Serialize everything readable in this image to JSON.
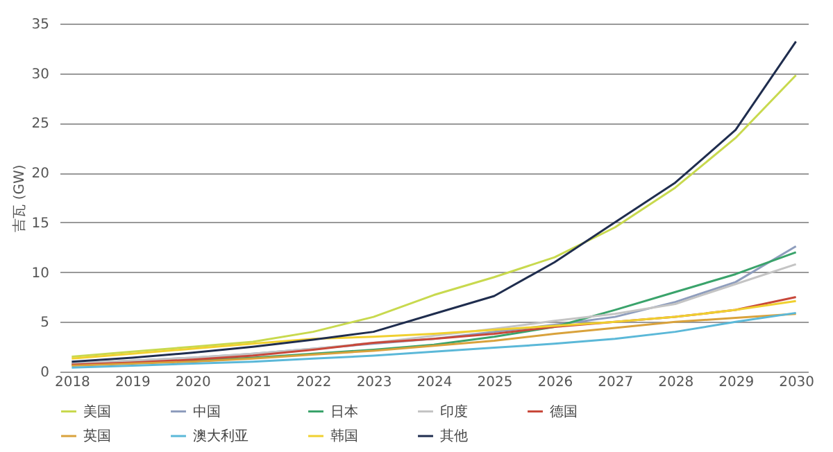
{
  "chart_data": {
    "type": "line",
    "ylabel": "吉瓦 (GW)",
    "categories": [
      "2018",
      "2019",
      "2020",
      "2021",
      "2022",
      "2023",
      "2024",
      "2025",
      "2026",
      "2027",
      "2028",
      "2029",
      "2030"
    ],
    "series": [
      {
        "name": "美国",
        "color": "#c8d94e",
        "values": [
          1.5,
          2.0,
          2.5,
          3.0,
          4.0,
          5.5,
          7.7,
          9.5,
          11.5,
          14.5,
          18.5,
          23.5,
          29.8
        ]
      },
      {
        "name": "中国",
        "color": "#8e9dbd",
        "values": [
          0.8,
          1.1,
          1.4,
          1.8,
          2.3,
          2.8,
          3.3,
          4.0,
          4.7,
          5.5,
          7.0,
          9.0,
          12.6
        ]
      },
      {
        "name": "日本",
        "color": "#3aa36b",
        "values": [
          0.7,
          0.9,
          1.1,
          1.4,
          1.8,
          2.2,
          2.7,
          3.5,
          4.5,
          6.2,
          8.0,
          9.8,
          12.0
        ]
      },
      {
        "name": "印度",
        "color": "#c4c4c4",
        "values": [
          0.8,
          1.1,
          1.4,
          1.8,
          2.3,
          2.9,
          3.6,
          4.3,
          5.1,
          5.8,
          6.8,
          8.8,
          10.8
        ]
      },
      {
        "name": "德国",
        "color": "#c8483a",
        "values": [
          0.7,
          0.9,
          1.2,
          1.6,
          2.2,
          2.9,
          3.3,
          3.8,
          4.5,
          5.0,
          5.5,
          6.2,
          7.5
        ]
      },
      {
        "name": "英国",
        "color": "#d9a23c",
        "values": [
          0.6,
          0.8,
          1.0,
          1.3,
          1.7,
          2.1,
          2.6,
          3.1,
          3.8,
          4.4,
          5.0,
          5.4,
          5.8
        ]
      },
      {
        "name": "澳大利亚",
        "color": "#5bb8d8",
        "values": [
          0.4,
          0.6,
          0.8,
          1.0,
          1.3,
          1.6,
          2.0,
          2.4,
          2.8,
          3.3,
          4.0,
          5.0,
          5.9
        ]
      },
      {
        "name": "韩国",
        "color": "#f0d030",
        "values": [
          1.3,
          1.8,
          2.3,
          2.8,
          3.3,
          3.5,
          3.8,
          4.2,
          4.6,
          5.0,
          5.5,
          6.2,
          7.1
        ]
      },
      {
        "name": "其他",
        "color": "#1f2d4e",
        "values": [
          1.0,
          1.4,
          1.9,
          2.5,
          3.2,
          4.0,
          5.8,
          7.6,
          11.0,
          15.0,
          19.0,
          24.3,
          33.2
        ]
      }
    ],
    "ylim": [
      0,
      35
    ],
    "yticks": [
      0,
      5,
      10,
      15,
      20,
      25,
      30,
      35
    ],
    "grid": "y",
    "legend": "bottom",
    "line_style": "solid",
    "marker": "none"
  }
}
